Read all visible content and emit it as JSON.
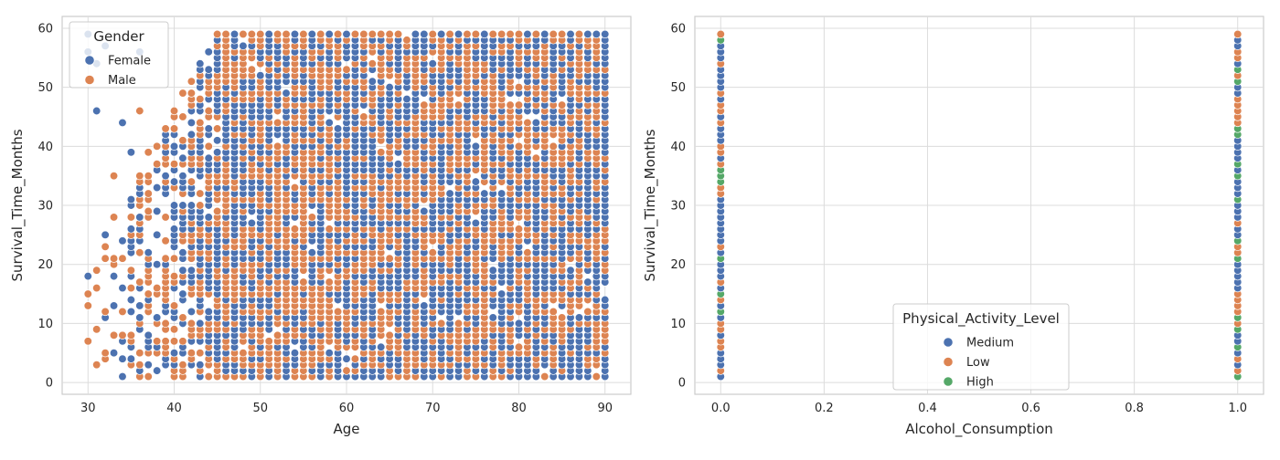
{
  "chart_data": [
    {
      "type": "scatter",
      "xlabel": "Age",
      "ylabel": "Survival_Time_Months",
      "xlim": [
        27,
        93
      ],
      "ylim": [
        -2,
        62
      ],
      "xticks": [
        "30",
        "40",
        "50",
        "60",
        "70",
        "80",
        "90"
      ],
      "yticks": [
        "0",
        "10",
        "20",
        "30",
        "40",
        "50",
        "60"
      ],
      "grid": true,
      "legend": {
        "title": "Gender",
        "placement": "top-left",
        "entries": [
          {
            "name": "Female",
            "color": "#4c72b0"
          },
          {
            "name": "Male",
            "color": "#dd8452"
          }
        ]
      },
      "x_integer_range": [
        30,
        90
      ],
      "y_integer_range": [
        1,
        59
      ],
      "density_note": "near-uniform coverage of integer grid; sparse for ages 30-44 (max survival rises with age, ~58 months by age 45), dense for ages 45-90",
      "series": [
        {
          "name": "Female",
          "color": "#4c72b0"
        },
        {
          "name": "Male",
          "color": "#dd8452"
        }
      ]
    },
    {
      "type": "scatter",
      "xlabel": "Alcohol_Consumption",
      "ylabel": "Survival_Time_Months",
      "xlim": [
        -0.05,
        1.05
      ],
      "ylim": [
        -2,
        62
      ],
      "xticks": [
        "0.0",
        "0.2",
        "0.4",
        "0.6",
        "0.8",
        "1.0"
      ],
      "yticks": [
        "0",
        "10",
        "20",
        "30",
        "40",
        "50",
        "60"
      ],
      "grid": true,
      "legend": {
        "title": "Physical_Activity_Level",
        "placement": "lower-center",
        "entries": [
          {
            "name": "Medium",
            "color": "#4c72b0"
          },
          {
            "name": "Low",
            "color": "#dd8452"
          },
          {
            "name": "High",
            "color": "#55a868"
          }
        ]
      },
      "x_values": [
        0,
        1
      ],
      "y_integer_range": [
        1,
        59
      ],
      "series": [
        {
          "name": "Medium",
          "color": "#4c72b0"
        },
        {
          "name": "Low",
          "color": "#dd8452"
        },
        {
          "name": "High",
          "color": "#55a868"
        }
      ]
    }
  ]
}
